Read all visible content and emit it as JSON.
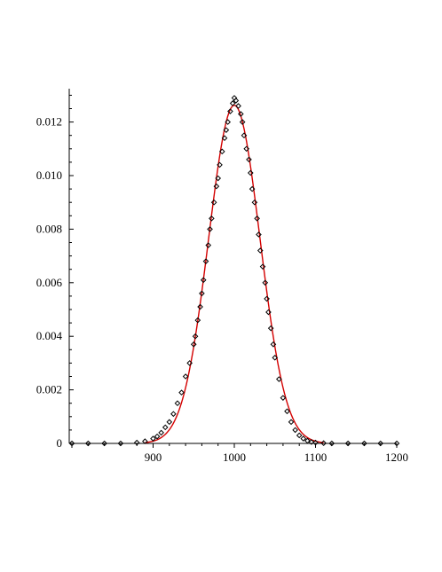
{
  "chart_data": {
    "type": "scatter",
    "title": "",
    "xlabel": "",
    "ylabel": "",
    "xlim": [
      800,
      1200
    ],
    "ylim": [
      0,
      0.013
    ],
    "x_ticks": [
      900,
      1000,
      1100,
      1200
    ],
    "x_tick_labels": [
      "900",
      "1000",
      "1100",
      "1200"
    ],
    "y_ticks": [
      0,
      0.002,
      0.004,
      0.006,
      0.008,
      0.01,
      0.012
    ],
    "y_tick_labels": [
      "0",
      "0.002",
      "0.004",
      "0.006",
      "0.008",
      "0.010",
      "0.012"
    ],
    "grid": false,
    "legend": "none",
    "series": [
      {
        "kind": "scatter",
        "marker": "diamond",
        "color": "#000000",
        "x": [
          800,
          820,
          840,
          860,
          880,
          890,
          900,
          905,
          910,
          915,
          920,
          925,
          930,
          935,
          940,
          945,
          950,
          952,
          955,
          958,
          960,
          962,
          965,
          968,
          970,
          972,
          975,
          978,
          980,
          982,
          985,
          988,
          990,
          992,
          995,
          998,
          1000,
          1002,
          1005,
          1008,
          1010,
          1012,
          1015,
          1018,
          1020,
          1022,
          1025,
          1028,
          1030,
          1032,
          1035,
          1038,
          1040,
          1042,
          1045,
          1048,
          1050,
          1055,
          1060,
          1065,
          1070,
          1075,
          1080,
          1085,
          1090,
          1095,
          1100,
          1110,
          1120,
          1140,
          1160,
          1180,
          1200
        ],
        "y": [
          0,
          0,
          0,
          0,
          3e-05,
          8e-05,
          0.00018,
          0.00026,
          0.0004,
          0.0006,
          0.0008,
          0.0011,
          0.0015,
          0.0019,
          0.0025,
          0.003,
          0.0037,
          0.004,
          0.0046,
          0.0051,
          0.0056,
          0.0061,
          0.0068,
          0.0074,
          0.008,
          0.0084,
          0.009,
          0.0096,
          0.0099,
          0.0104,
          0.0109,
          0.0114,
          0.0117,
          0.012,
          0.0124,
          0.0127,
          0.0129,
          0.0128,
          0.0126,
          0.0123,
          0.012,
          0.0115,
          0.011,
          0.0106,
          0.0101,
          0.0095,
          0.009,
          0.0084,
          0.0078,
          0.0072,
          0.0066,
          0.006,
          0.0054,
          0.0049,
          0.0043,
          0.0037,
          0.0032,
          0.0024,
          0.0017,
          0.0012,
          0.0008,
          0.0005,
          0.0003,
          0.00018,
          0.0001,
          5e-05,
          3e-05,
          1e-05,
          0,
          0,
          0,
          0,
          0
        ]
      },
      {
        "kind": "line",
        "color": "#d40000",
        "distribution": "normal",
        "mean": 1000,
        "sd": 31.6,
        "x_range": [
          890,
          1110
        ]
      }
    ]
  }
}
